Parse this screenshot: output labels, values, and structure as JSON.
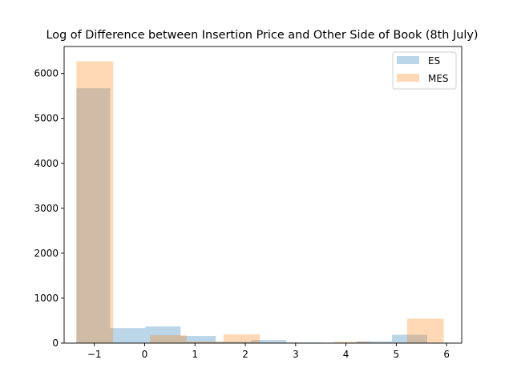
{
  "chart_data": {
    "type": "bar",
    "title": "Log of Difference between Insertion Price and Other Side of Book (8th July)",
    "xlabel": "",
    "ylabel": "",
    "xlim": [
      -1.6,
      6.3
    ],
    "ylim": [
      0,
      6600
    ],
    "xticks": [
      -1,
      0,
      1,
      2,
      3,
      4,
      5,
      6
    ],
    "xtick_labels": [
      "−1",
      "0",
      "1",
      "2",
      "3",
      "4",
      "5",
      "6"
    ],
    "yticks": [
      0,
      1000,
      2000,
      3000,
      4000,
      5000,
      6000
    ],
    "ytick_labels": [
      "0",
      "1000",
      "2000",
      "3000",
      "4000",
      "5000",
      "6000"
    ],
    "grid": false,
    "legend_position": "top-right",
    "series": [
      {
        "name": "ES",
        "color": "#1f77b4",
        "opacity": 0.3,
        "bins": [
          {
            "x0": -1.356,
            "x1": -0.686,
            "value": 5670
          },
          {
            "x0": -0.686,
            "x1": 0.014,
            "value": 335
          },
          {
            "x0": 0.014,
            "x1": 0.714,
            "value": 370
          },
          {
            "x0": 0.714,
            "x1": 1.414,
            "value": 160
          },
          {
            "x0": 1.414,
            "x1": 2.114,
            "value": 30
          },
          {
            "x0": 2.114,
            "x1": 2.814,
            "value": 70
          },
          {
            "x0": 2.814,
            "x1": 3.514,
            "value": 15
          },
          {
            "x0": 3.514,
            "x1": 4.214,
            "value": 10
          },
          {
            "x0": 4.214,
            "x1": 4.914,
            "value": 40
          },
          {
            "x0": 4.914,
            "x1": 5.614,
            "value": 185
          }
        ]
      },
      {
        "name": "MES",
        "color": "#ff7f0e",
        "opacity": 0.3,
        "bins": [
          {
            "x0": -1.356,
            "x1": -0.626,
            "value": 6270
          },
          {
            "x0": -0.626,
            "x1": 0.104,
            "value": 5
          },
          {
            "x0": 0.104,
            "x1": 0.834,
            "value": 175
          },
          {
            "x0": 0.834,
            "x1": 1.564,
            "value": 35
          },
          {
            "x0": 1.564,
            "x1": 2.294,
            "value": 195
          },
          {
            "x0": 2.294,
            "x1": 3.024,
            "value": 10
          },
          {
            "x0": 3.024,
            "x1": 3.754,
            "value": 5
          },
          {
            "x0": 3.754,
            "x1": 4.484,
            "value": 30
          },
          {
            "x0": 4.484,
            "x1": 5.214,
            "value": 5
          },
          {
            "x0": 5.214,
            "x1": 5.944,
            "value": 545
          }
        ]
      }
    ]
  }
}
